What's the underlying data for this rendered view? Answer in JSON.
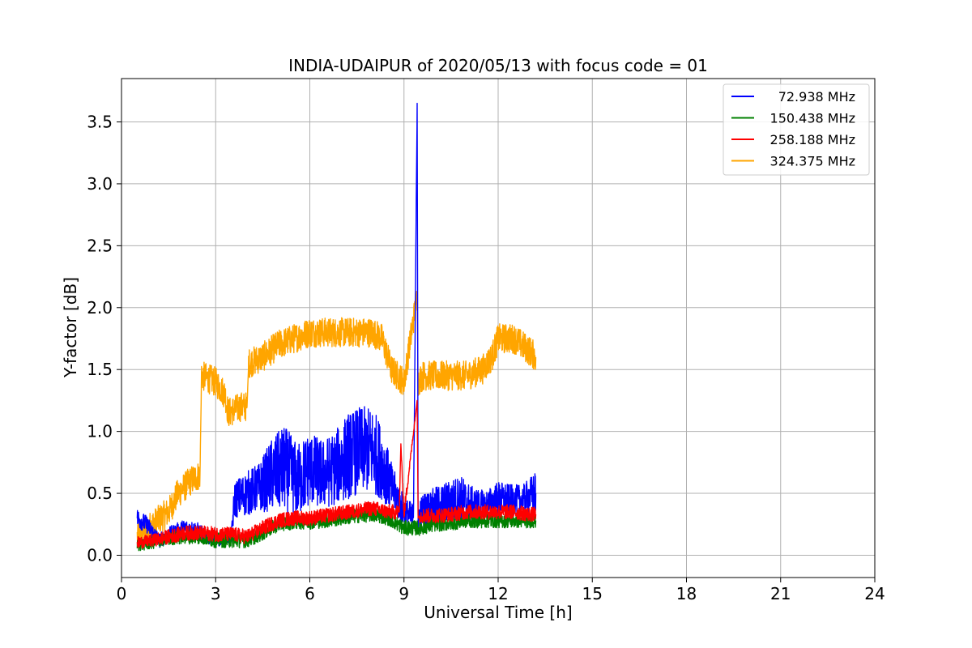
{
  "chart_data": {
    "type": "line",
    "title": "INDIA-UDAIPUR of 2020/05/13 with focus code = 01",
    "xlabel": "Universal Time [h]",
    "ylabel": "Y-factor [dB]",
    "xlim": [
      0,
      24
    ],
    "ylim": [
      -0.18,
      3.85
    ],
    "xticks": [
      0,
      3,
      6,
      9,
      12,
      15,
      18,
      21,
      24
    ],
    "xtick_labels": [
      "0",
      "3",
      "6",
      "9",
      "12",
      "15",
      "18",
      "21",
      "24"
    ],
    "yticks": [
      0.0,
      0.5,
      1.0,
      1.5,
      2.0,
      2.5,
      3.0,
      3.5
    ],
    "ytick_labels": [
      "0.0",
      "0.5",
      "1.0",
      "1.5",
      "2.0",
      "2.5",
      "3.0",
      "3.5"
    ],
    "grid": true,
    "legend_position": "top-right",
    "series": [
      {
        "name": "72.938 MHz",
        "color": "#0000ff",
        "x": [
          0.5,
          0.8,
          1.2,
          1.6,
          2.0,
          2.4,
          2.8,
          3.2,
          3.5,
          3.6,
          4.0,
          4.4,
          4.8,
          5.2,
          5.6,
          6.0,
          6.4,
          6.8,
          7.2,
          7.6,
          8.0,
          8.3,
          8.6,
          9.0,
          9.3,
          9.42,
          9.45,
          9.6,
          10.0,
          10.4,
          10.8,
          11.2,
          11.6,
          12.0,
          12.4,
          12.8,
          13.2
        ],
        "y": [
          0.3,
          0.25,
          0.12,
          0.18,
          0.22,
          0.2,
          0.14,
          0.12,
          0.15,
          0.45,
          0.5,
          0.55,
          0.65,
          0.7,
          0.6,
          0.7,
          0.65,
          0.7,
          0.8,
          0.85,
          0.85,
          0.75,
          0.55,
          0.35,
          0.3,
          3.65,
          0.3,
          0.35,
          0.4,
          0.42,
          0.45,
          0.4,
          0.4,
          0.45,
          0.45,
          0.45,
          0.5
        ],
        "spread": [
          0.08,
          0.07,
          0.06,
          0.06,
          0.07,
          0.07,
          0.05,
          0.05,
          0.05,
          0.15,
          0.18,
          0.2,
          0.3,
          0.35,
          0.3,
          0.3,
          0.28,
          0.3,
          0.35,
          0.35,
          0.35,
          0.3,
          0.2,
          0.12,
          0.12,
          0.0,
          0.12,
          0.15,
          0.15,
          0.18,
          0.2,
          0.15,
          0.12,
          0.15,
          0.12,
          0.12,
          0.18
        ]
      },
      {
        "name": "150.438 MHz",
        "color": "#008000",
        "x": [
          0.5,
          1.0,
          1.5,
          2.0,
          2.5,
          3.0,
          3.5,
          4.0,
          4.5,
          5.0,
          5.5,
          6.0,
          6.5,
          7.0,
          7.5,
          8.0,
          8.5,
          9.0,
          9.5,
          10.0,
          10.5,
          11.0,
          11.5,
          12.0,
          12.5,
          13.0,
          13.2
        ],
        "y": [
          0.08,
          0.1,
          0.13,
          0.15,
          0.15,
          0.12,
          0.12,
          0.12,
          0.18,
          0.25,
          0.27,
          0.27,
          0.28,
          0.3,
          0.32,
          0.33,
          0.3,
          0.22,
          0.22,
          0.25,
          0.26,
          0.28,
          0.28,
          0.28,
          0.28,
          0.28,
          0.28
        ],
        "spread": [
          0.05,
          0.05,
          0.05,
          0.06,
          0.06,
          0.06,
          0.06,
          0.06,
          0.06,
          0.06,
          0.06,
          0.06,
          0.06,
          0.06,
          0.06,
          0.06,
          0.06,
          0.06,
          0.06,
          0.06,
          0.06,
          0.06,
          0.06,
          0.06,
          0.06,
          0.06,
          0.06
        ]
      },
      {
        "name": "258.188 MHz",
        "color": "#ff0000",
        "x": [
          0.5,
          1.0,
          1.5,
          2.0,
          2.5,
          3.0,
          3.5,
          4.0,
          4.5,
          5.0,
          5.5,
          6.0,
          6.5,
          7.0,
          7.5,
          8.0,
          8.5,
          8.85,
          8.9,
          9.0,
          9.42,
          9.45,
          9.5,
          10.0,
          10.5,
          11.0,
          11.5,
          12.0,
          12.5,
          13.0,
          13.2
        ],
        "y": [
          0.1,
          0.12,
          0.15,
          0.18,
          0.18,
          0.17,
          0.17,
          0.15,
          0.22,
          0.28,
          0.3,
          0.3,
          0.32,
          0.34,
          0.36,
          0.38,
          0.35,
          0.35,
          0.9,
          0.33,
          1.25,
          0.3,
          0.32,
          0.32,
          0.33,
          0.35,
          0.35,
          0.35,
          0.35,
          0.33,
          0.33
        ],
        "spread": [
          0.05,
          0.05,
          0.06,
          0.06,
          0.06,
          0.06,
          0.06,
          0.06,
          0.06,
          0.06,
          0.06,
          0.06,
          0.06,
          0.06,
          0.06,
          0.06,
          0.06,
          0.06,
          0.0,
          0.06,
          0.0,
          0.06,
          0.06,
          0.06,
          0.06,
          0.06,
          0.06,
          0.06,
          0.06,
          0.06,
          0.06
        ]
      },
      {
        "name": "324.375 MHz",
        "color": "#ffa500",
        "x": [
          0.5,
          1.0,
          1.5,
          1.8,
          2.2,
          2.5,
          2.55,
          3.0,
          3.3,
          3.4,
          3.8,
          4.0,
          4.05,
          4.5,
          5.0,
          5.5,
          6.0,
          6.5,
          7.0,
          7.5,
          8.0,
          8.3,
          8.6,
          9.0,
          9.42,
          9.45,
          9.6,
          10.0,
          10.5,
          11.0,
          11.5,
          11.8,
          12.0,
          12.5,
          13.0,
          13.2
        ],
        "y": [
          0.15,
          0.25,
          0.35,
          0.5,
          0.6,
          0.65,
          1.45,
          1.4,
          1.3,
          1.15,
          1.2,
          1.2,
          1.55,
          1.6,
          1.7,
          1.75,
          1.8,
          1.8,
          1.8,
          1.8,
          1.8,
          1.75,
          1.5,
          1.4,
          2.1,
          1.4,
          1.45,
          1.45,
          1.45,
          1.45,
          1.5,
          1.6,
          1.75,
          1.75,
          1.65,
          1.6
        ]
      }
    ]
  }
}
